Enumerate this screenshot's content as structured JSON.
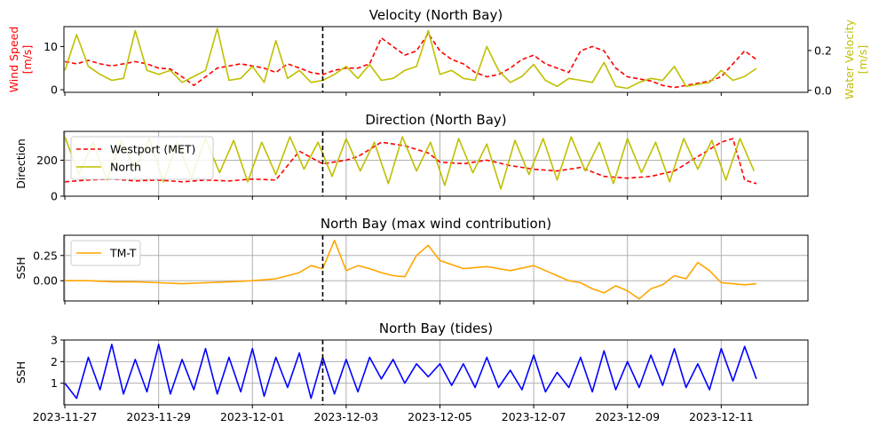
{
  "figure": {
    "event_date": "2023-12-02.5",
    "xticks": [
      "2023-11-27",
      "2023-11-29",
      "2023-12-01",
      "2023-12-03",
      "2023-12-05",
      "2023-12-07",
      "2023-12-09",
      "2023-12-11"
    ],
    "colors": {
      "wind": "#ff0000",
      "water": "#bfbf00",
      "orange": "#ffa500",
      "blue": "#0000ff",
      "event": "#000000",
      "grid": "#b0b0b0"
    }
  },
  "chart_data": [
    {
      "type": "line",
      "title": "Velocity (North Bay)",
      "xlabel": "",
      "ylabel": "Wind Speed\n[m/s]",
      "ylabel_right": "Water Velocity\n[m/s]",
      "xlim": [
        "2023-11-27",
        "2023-12-11"
      ],
      "ylim": [
        -0.6,
        14.6
      ],
      "yticks": [
        "0",
        "10"
      ],
      "ylim_right": [
        -0.01,
        0.32
      ],
      "yticks_right": [
        "0.0",
        "0.2"
      ],
      "grid": false,
      "series": [
        {
          "axis": "left",
          "style": "dashed",
          "color": "#ff0000",
          "x": [
            0,
            0.25,
            0.5,
            0.75,
            1,
            1.25,
            1.5,
            1.75,
            2,
            2.25,
            2.5,
            2.75,
            3,
            3.25,
            3.5,
            3.75,
            4,
            4.25,
            4.5,
            4.75,
            5,
            5.25,
            5.5,
            5.75,
            6,
            6.25,
            6.5,
            6.75,
            7,
            7.25,
            7.5,
            7.75,
            8,
            8.25,
            8.5,
            8.75,
            9,
            9.25,
            9.5,
            9.75,
            10,
            10.25,
            10.5,
            10.75,
            11,
            11.25,
            11.5,
            11.75,
            12,
            12.25,
            12.5,
            12.75,
            13,
            13.25,
            13.5,
            13.75,
            14,
            14.25,
            14.5,
            14.75
          ],
          "y": [
            6.5,
            6,
            6.8,
            6,
            5.5,
            6,
            6.5,
            6,
            5,
            4.8,
            3,
            1,
            3,
            5,
            5.5,
            6,
            5.5,
            5,
            4,
            6,
            5,
            4,
            3.5,
            4.5,
            5,
            5,
            6,
            12,
            10,
            8,
            9,
            13,
            9,
            7,
            6,
            4,
            3,
            3.5,
            5,
            7,
            8,
            6,
            5,
            4,
            9,
            10,
            9,
            5,
            3,
            2.5,
            2,
            1,
            0.5,
            1,
            1.5,
            2,
            3,
            6,
            9,
            7
          ]
        },
        {
          "axis": "right",
          "style": "solid",
          "color": "#bfbf00",
          "x": [
            0,
            0.25,
            0.5,
            0.75,
            1,
            1.25,
            1.5,
            1.75,
            2,
            2.25,
            2.5,
            2.75,
            3,
            3.25,
            3.5,
            3.75,
            4,
            4.25,
            4.5,
            4.75,
            5,
            5.25,
            5.5,
            5.75,
            6,
            6.25,
            6.5,
            6.75,
            7,
            7.25,
            7.5,
            7.75,
            8,
            8.25,
            8.5,
            8.75,
            9,
            9.25,
            9.5,
            9.75,
            10,
            10.25,
            10.5,
            10.75,
            11,
            11.25,
            11.5,
            11.75,
            12,
            12.25,
            12.5,
            12.75,
            13,
            13.25,
            13.5,
            13.75,
            14,
            14.25,
            14.5,
            14.75
          ],
          "y": [
            0.1,
            0.28,
            0.12,
            0.08,
            0.05,
            0.06,
            0.3,
            0.1,
            0.08,
            0.1,
            0.04,
            0.07,
            0.1,
            0.31,
            0.05,
            0.06,
            0.12,
            0.04,
            0.25,
            0.06,
            0.1,
            0.04,
            0.05,
            0.08,
            0.12,
            0.06,
            0.13,
            0.05,
            0.06,
            0.1,
            0.12,
            0.3,
            0.08,
            0.1,
            0.06,
            0.05,
            0.22,
            0.1,
            0.04,
            0.07,
            0.13,
            0.05,
            0.02,
            0.06,
            0.05,
            0.04,
            0.14,
            0.02,
            0.01,
            0.04,
            0.06,
            0.05,
            0.12,
            0.02,
            0.03,
            0.04,
            0.1,
            0.05,
            0.07,
            0.11
          ]
        }
      ]
    },
    {
      "type": "line",
      "title": "Direction (North Bay)",
      "xlabel": "",
      "ylabel": "Direction",
      "xlim": [
        "2023-11-27",
        "2023-12-11"
      ],
      "ylim": [
        0,
        360
      ],
      "yticks": [
        "0",
        "200"
      ],
      "grid": true,
      "legend": "upper-left",
      "series": [
        {
          "name": "Westport (MET)",
          "style": "dashed",
          "color": "#ff0000",
          "x": [
            0,
            0.5,
            1,
            1.5,
            2,
            2.5,
            3,
            3.5,
            4,
            4.5,
            5,
            5.5,
            6,
            6.25,
            6.5,
            6.75,
            7,
            7.25,
            7.5,
            7.75,
            8,
            8.5,
            9,
            9.5,
            10,
            10.5,
            11,
            11.5,
            12,
            12.5,
            13,
            13.5,
            14,
            14.25,
            14.5,
            14.75
          ],
          "y": [
            80,
            90,
            95,
            85,
            90,
            80,
            90,
            85,
            95,
            90,
            250,
            180,
            200,
            220,
            260,
            300,
            290,
            280,
            260,
            240,
            190,
            180,
            200,
            170,
            150,
            140,
            160,
            110,
            100,
            110,
            140,
            220,
            300,
            320,
            90,
            70
          ]
        },
        {
          "name": "North",
          "style": "solid",
          "color": "#bfbf00",
          "x": [
            0,
            0.3,
            0.6,
            0.9,
            1.2,
            1.5,
            1.8,
            2.1,
            2.4,
            2.7,
            3,
            3.3,
            3.6,
            3.9,
            4.2,
            4.5,
            4.8,
            5.1,
            5.4,
            5.7,
            6,
            6.3,
            6.6,
            6.9,
            7.2,
            7.5,
            7.8,
            8.1,
            8.4,
            8.7,
            9,
            9.3,
            9.6,
            9.9,
            10.2,
            10.5,
            10.8,
            11.1,
            11.4,
            11.7,
            12,
            12.3,
            12.6,
            12.9,
            13.2,
            13.5,
            13.8,
            14.1,
            14.4,
            14.7
          ],
          "y": [
            330,
            120,
            300,
            90,
            310,
            150,
            320,
            80,
            300,
            100,
            320,
            130,
            310,
            80,
            300,
            120,
            330,
            150,
            300,
            110,
            320,
            140,
            300,
            70,
            330,
            140,
            300,
            60,
            320,
            130,
            290,
            40,
            310,
            120,
            320,
            90,
            330,
            140,
            300,
            70,
            320,
            130,
            300,
            80,
            320,
            150,
            310,
            90,
            320,
            140
          ]
        }
      ]
    },
    {
      "type": "line",
      "title": "North Bay (max wind contribution)",
      "xlabel": "",
      "ylabel": "SSH",
      "xlim": [
        "2023-11-27",
        "2023-12-11"
      ],
      "ylim": [
        -0.2,
        0.45
      ],
      "yticks": [
        "0.00",
        "0.25"
      ],
      "grid": true,
      "legend": "upper-left",
      "series": [
        {
          "name": "TM-T",
          "style": "solid",
          "color": "#ffa500",
          "x": [
            0,
            0.5,
            1,
            1.5,
            2,
            2.5,
            3,
            3.5,
            4,
            4.5,
            5,
            5.25,
            5.5,
            5.75,
            6,
            6.25,
            6.5,
            6.75,
            7,
            7.25,
            7.5,
            7.75,
            8,
            8.5,
            9,
            9.5,
            10,
            10.25,
            10.5,
            10.75,
            11,
            11.25,
            11.5,
            11.75,
            12,
            12.25,
            12.5,
            12.75,
            13,
            13.25,
            13.5,
            13.75,
            14,
            14.25,
            14.5,
            14.75
          ],
          "y": [
            0,
            0,
            -0.01,
            -0.01,
            -0.02,
            -0.03,
            -0.02,
            -0.01,
            0,
            0.02,
            0.08,
            0.15,
            0.12,
            0.4,
            0.1,
            0.15,
            0.12,
            0.08,
            0.05,
            0.04,
            0.25,
            0.35,
            0.2,
            0.12,
            0.14,
            0.1,
            0.15,
            0.1,
            0.05,
            0,
            -0.02,
            -0.08,
            -0.12,
            -0.05,
            -0.1,
            -0.18,
            -0.08,
            -0.04,
            0.05,
            0.02,
            0.18,
            0.1,
            -0.02,
            -0.03,
            -0.04,
            -0.03
          ]
        }
      ]
    },
    {
      "type": "line",
      "title": "North Bay (tides)",
      "xlabel": "",
      "ylabel": "SSH",
      "xlim": [
        "2023-11-27",
        "2023-12-11"
      ],
      "ylim": [
        0,
        3
      ],
      "yticks": [
        "1",
        "2",
        "3"
      ],
      "grid": true,
      "series": [
        {
          "style": "solid",
          "color": "#0000ff",
          "x": [
            0,
            0.25,
            0.5,
            0.75,
            1,
            1.25,
            1.5,
            1.75,
            2,
            2.25,
            2.5,
            2.75,
            3,
            3.25,
            3.5,
            3.75,
            4,
            4.25,
            4.5,
            4.75,
            5,
            5.25,
            5.5,
            5.75,
            6,
            6.25,
            6.5,
            6.75,
            7,
            7.25,
            7.5,
            7.75,
            8,
            8.25,
            8.5,
            8.75,
            9,
            9.25,
            9.5,
            9.75,
            10,
            10.25,
            10.5,
            10.75,
            11,
            11.25,
            11.5,
            11.75,
            12,
            12.25,
            12.5,
            12.75,
            13,
            13.25,
            13.5,
            13.75,
            14,
            14.25,
            14.5,
            14.75
          ],
          "y": [
            1.0,
            0.3,
            2.2,
            0.7,
            2.8,
            0.5,
            2.1,
            0.6,
            2.8,
            0.5,
            2.1,
            0.7,
            2.6,
            0.5,
            2.2,
            0.6,
            2.6,
            0.4,
            2.2,
            0.8,
            2.4,
            0.3,
            2.2,
            0.5,
            2.1,
            0.6,
            2.2,
            1.2,
            2.1,
            1.0,
            1.9,
            1.3,
            1.9,
            0.9,
            1.9,
            0.8,
            2.2,
            0.8,
            1.6,
            0.7,
            2.3,
            0.6,
            1.5,
            0.8,
            2.2,
            0.6,
            2.5,
            0.7,
            2.0,
            0.8,
            2.3,
            0.9,
            2.6,
            0.8,
            1.9,
            0.7,
            2.6,
            1.1,
            2.7,
            1.2
          ]
        }
      ]
    }
  ]
}
